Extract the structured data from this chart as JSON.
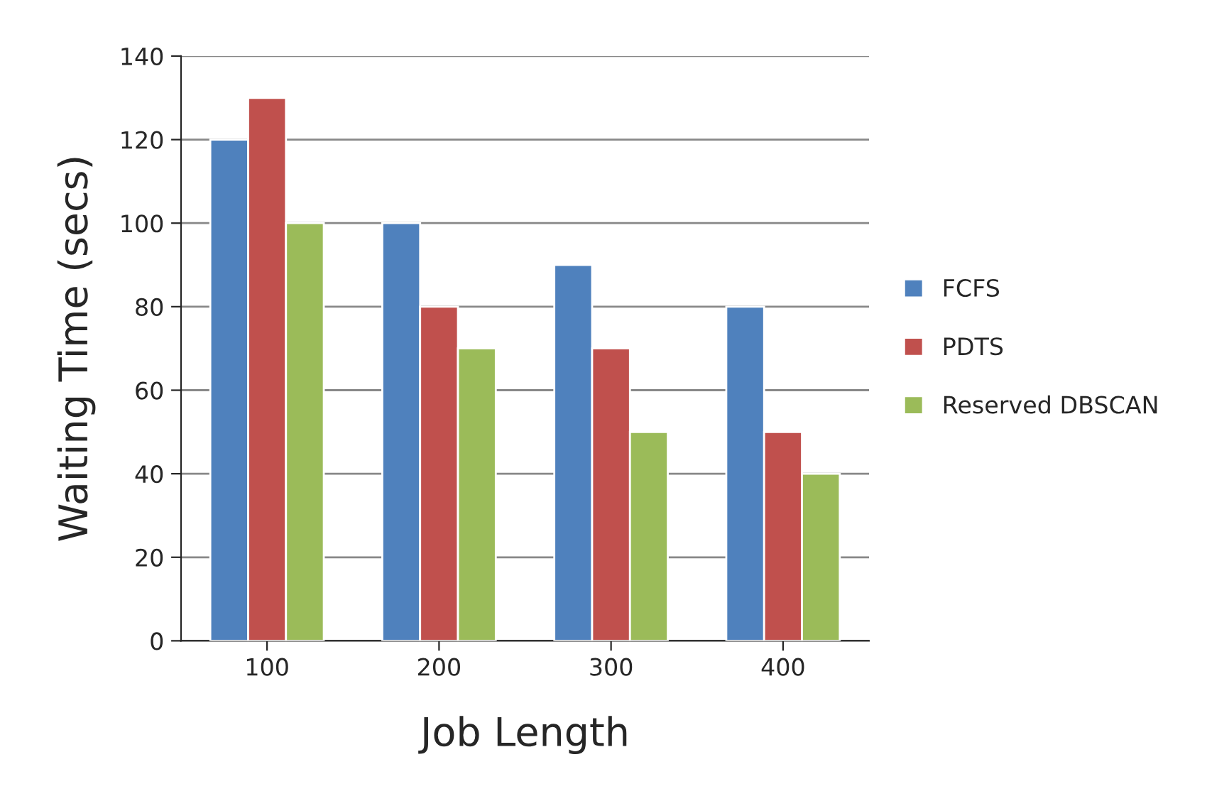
{
  "chart_data": {
    "type": "bar",
    "xlabel": "Job Length",
    "ylabel": "Waiting Time (secs)",
    "categories": [
      "100",
      "200",
      "300",
      "400"
    ],
    "series": [
      {
        "name": "FCFS",
        "color": "#4f81bd",
        "values": [
          120,
          100,
          90,
          80
        ]
      },
      {
        "name": "PDTS",
        "color": "#c0504d",
        "values": [
          130,
          80,
          70,
          50
        ]
      },
      {
        "name": "Reserved DBSCAN",
        "color": "#9bbb59",
        "values": [
          100,
          70,
          50,
          40
        ]
      }
    ],
    "ylim": [
      0,
      140
    ],
    "yticks": [
      0,
      20,
      40,
      60,
      80,
      100,
      120,
      140
    ],
    "grid": "y",
    "legend": "right"
  }
}
